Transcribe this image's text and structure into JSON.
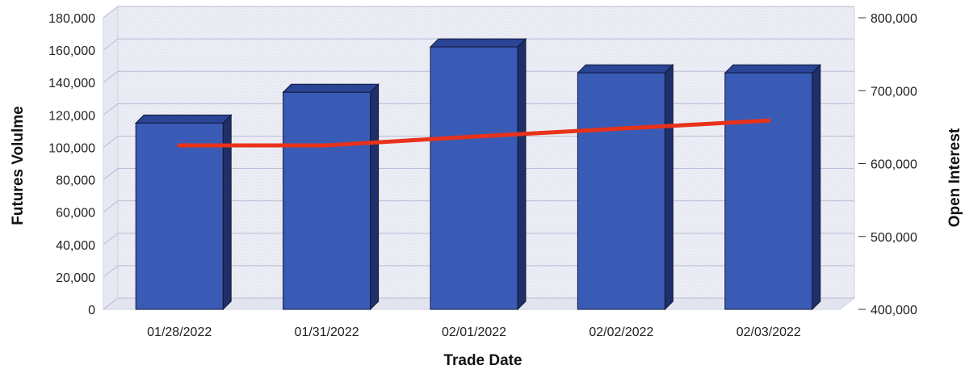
{
  "chart_data": {
    "type": "bar",
    "title": "",
    "xlabel": "Trade Date",
    "ylabel": "Futures Volulme",
    "y2label": "Open Interest",
    "categories": [
      "01/28/2022",
      "01/31/2022",
      "02/01/2022",
      "02/02/2022",
      "02/03/2022"
    ],
    "series": [
      {
        "name": "",
        "chart": "bar",
        "axis": "left",
        "values": [
          115000,
          134000,
          162000,
          146000,
          146000
        ]
      },
      {
        "name": "",
        "chart": "line",
        "axis": "right",
        "values": [
          625000,
          625000,
          637000,
          648000,
          659000
        ]
      }
    ],
    "ylim": [
      0,
      180000
    ],
    "y2lim": [
      400000,
      800000
    ],
    "yticks": [
      "0",
      "20,000",
      "40,000",
      "60,000",
      "80,000",
      "100,000",
      "120,000",
      "140,000",
      "160,000",
      "180,000"
    ],
    "y2ticks": [
      "400,000",
      "500,000",
      "600,000",
      "700,000",
      "800,000"
    ],
    "grid": true,
    "legend": "none",
    "colors": {
      "bar": "#3a5bb5",
      "bar_dark": "#1f2f68",
      "bar_top": "#2a4595",
      "line": "#e8321a",
      "grid": "#b9bcd6",
      "plot_bg": "#eef0f7",
      "floor": "#e2e4ef"
    }
  }
}
